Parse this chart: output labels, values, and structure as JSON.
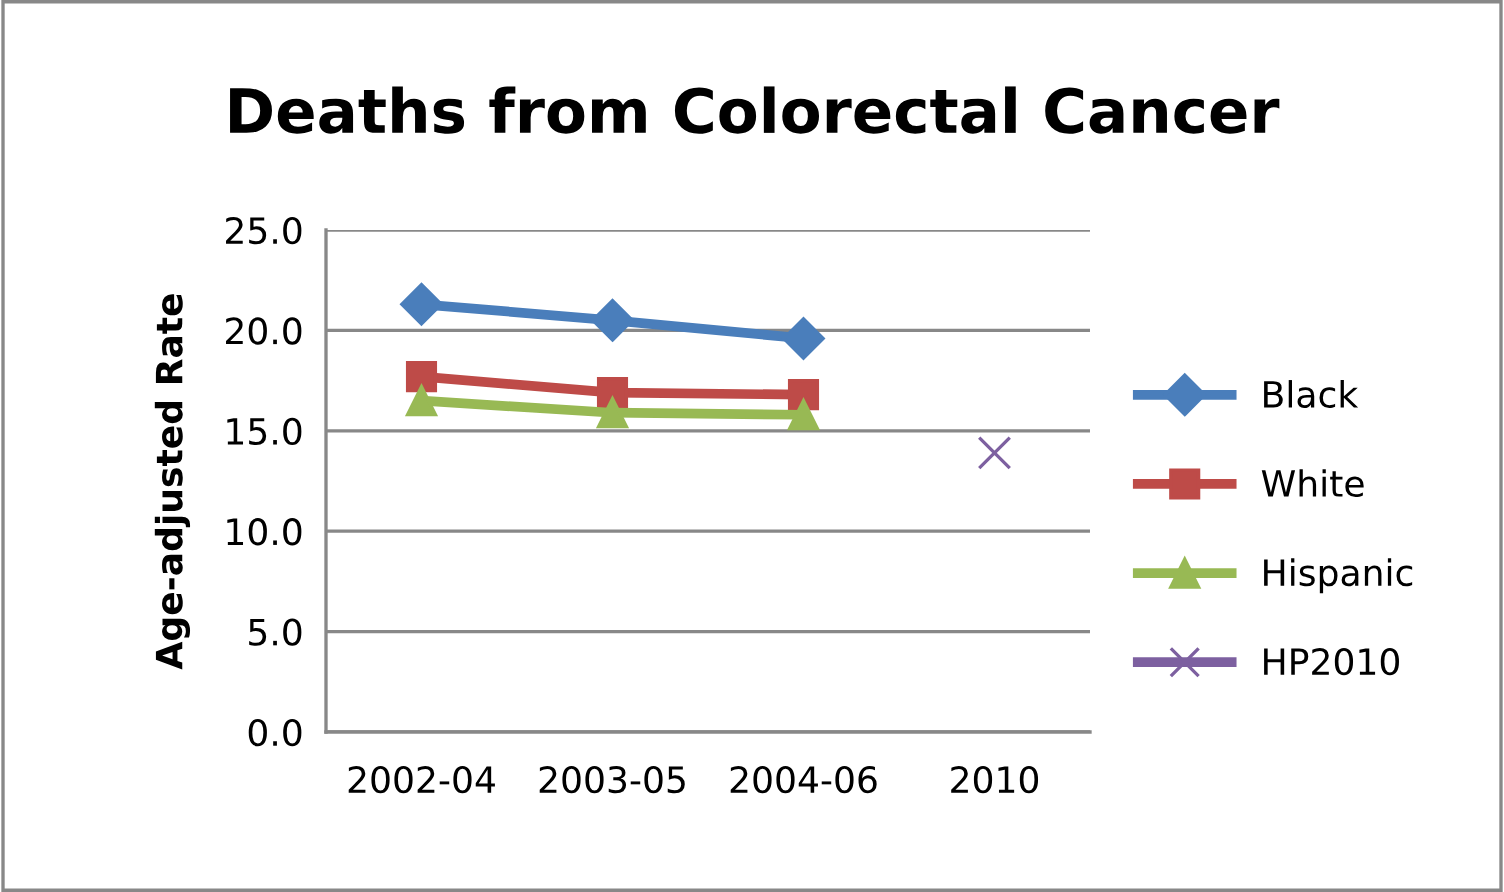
{
  "chart_data": {
    "type": "line",
    "title": "Deaths from Colorectal Cancer",
    "ylabel": "Age-adjusted Rate",
    "categories": [
      "2002-04",
      "2003-05",
      "2004-06",
      "2010"
    ],
    "series": [
      {
        "name": "Black",
        "color": "#4a7ebb",
        "marker": "diamond",
        "values": [
          21.3,
          20.5,
          19.6,
          null
        ]
      },
      {
        "name": "White",
        "color": "#be4b48",
        "marker": "square",
        "values": [
          17.7,
          16.9,
          16.8,
          null
        ]
      },
      {
        "name": "Hispanic",
        "color": "#98b954",
        "marker": "triangle",
        "values": [
          16.5,
          15.9,
          15.8,
          null
        ]
      },
      {
        "name": "HP2010",
        "color": "#7d60a0",
        "marker": "cross",
        "values": [
          null,
          null,
          null,
          13.9
        ]
      }
    ],
    "ylim": [
      0,
      25
    ],
    "yticks": [
      {
        "value": 0,
        "label": "0.0"
      },
      {
        "value": 5,
        "label": "5.0"
      },
      {
        "value": 10,
        "label": "10.0"
      },
      {
        "value": 15,
        "label": "15.0"
      },
      {
        "value": 20,
        "label": "20.0"
      },
      {
        "value": 25,
        "label": "25.0"
      }
    ],
    "grid": "y",
    "legend": "right"
  }
}
